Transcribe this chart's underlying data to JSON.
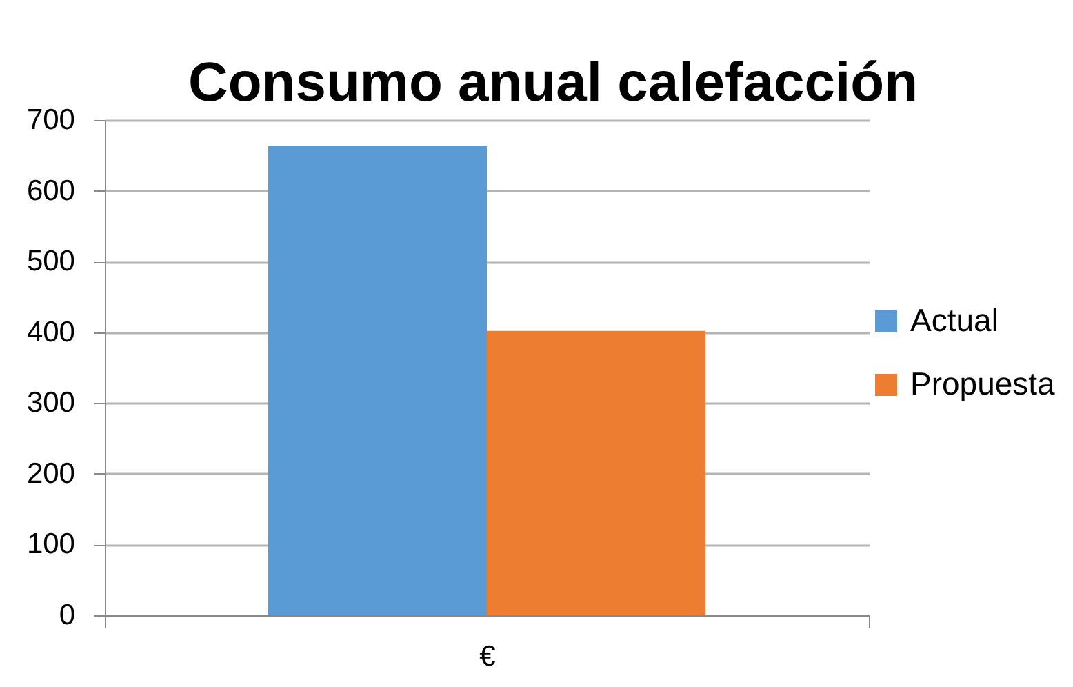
{
  "chart_data": {
    "type": "bar",
    "title": "Consumo anual calefacción",
    "categories": [
      "€"
    ],
    "series": [
      {
        "name": "Actual",
        "color": "#5b9bd5",
        "values": [
          663
        ]
      },
      {
        "name": "Propuesta",
        "color": "#ed7d31",
        "values": [
          402
        ]
      }
    ],
    "ylim": [
      0,
      700
    ],
    "yticks": [
      0,
      100,
      200,
      300,
      400,
      500,
      600,
      700
    ],
    "grid": "y",
    "legend": "right"
  }
}
